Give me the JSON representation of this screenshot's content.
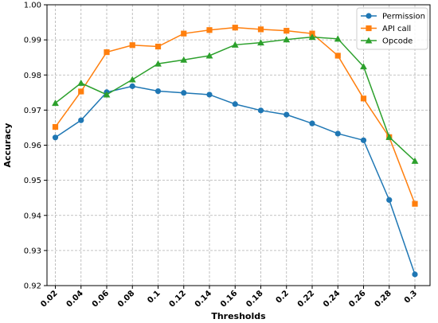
{
  "chart_data": {
    "type": "line",
    "title": "",
    "xlabel": "Thresholds",
    "ylabel": "Accuracy",
    "categories": [
      "0.02",
      "0.04",
      "0.06",
      "0.08",
      "0.1",
      "0.12",
      "0.14",
      "0.16",
      "0.18",
      "0.2",
      "0.22",
      "0.24",
      "0.26",
      "0.28",
      "0.3"
    ],
    "ylim": [
      0.92,
      1.0
    ],
    "yticks": [
      "0.92",
      "0.93",
      "0.94",
      "0.95",
      "0.96",
      "0.97",
      "0.98",
      "0.99",
      "1.00"
    ],
    "grid": true,
    "legend_position": "top-right",
    "series": [
      {
        "name": "Permission",
        "color": "#1f77b4",
        "marker": "circle",
        "values": [
          0.9622,
          0.9671,
          0.9751,
          0.9768,
          0.9754,
          0.9749,
          0.9744,
          0.9717,
          0.9699,
          0.9687,
          0.9662,
          0.9633,
          0.9614,
          0.9444,
          0.9232
        ]
      },
      {
        "name": "API call",
        "color": "#ff7f0e",
        "marker": "square",
        "values": [
          0.9652,
          0.9753,
          0.9865,
          0.9885,
          0.9881,
          0.9918,
          0.9928,
          0.9935,
          0.993,
          0.9926,
          0.9918,
          0.9855,
          0.9733,
          0.9623,
          0.9433
        ]
      },
      {
        "name": "Opcode",
        "color": "#2ca02c",
        "marker": "triangle",
        "values": [
          0.972,
          0.9777,
          0.9744,
          0.9787,
          0.9832,
          0.9843,
          0.9855,
          0.9886,
          0.9892,
          0.9901,
          0.9908,
          0.9903,
          0.9824,
          0.9623,
          0.9555
        ]
      }
    ]
  }
}
